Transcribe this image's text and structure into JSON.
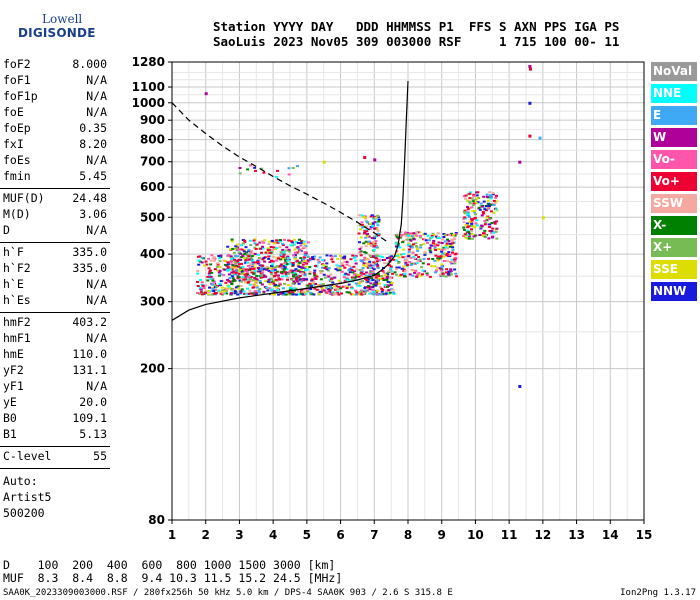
{
  "logo": {
    "line1": "Lowell",
    "line2": "DIGISONDE"
  },
  "header": {
    "line1": "Station YYYY DAY   DDD HHMMSS P1  FFS S AXN PPS IGA PS",
    "line2": "SaoLuis 2023 Nov05 309 003000 RSF     1 715 100 00- 11"
  },
  "params": [
    {
      "k": "foF2",
      "v": "8.000"
    },
    {
      "k": "foF1",
      "v": "N/A"
    },
    {
      "k": "foF1p",
      "v": "N/A"
    },
    {
      "k": "foE",
      "v": "N/A"
    },
    {
      "k": "foEp",
      "v": "0.35"
    },
    {
      "k": "fxI",
      "v": "8.20"
    },
    {
      "k": "foEs",
      "v": "N/A"
    },
    {
      "k": "fmin",
      "v": "5.45"
    },
    {
      "k": "MUF(D)",
      "v": "24.48"
    },
    {
      "k": "M(D)",
      "v": "3.06"
    },
    {
      "k": "D",
      "v": "N/A"
    },
    {
      "k": "h`F",
      "v": "335.0"
    },
    {
      "k": "h`F2",
      "v": "335.0"
    },
    {
      "k": "h`E",
      "v": "N/A"
    },
    {
      "k": "h`Es",
      "v": "N/A"
    },
    {
      "k": "hmF2",
      "v": "403.2"
    },
    {
      "k": "hmF1",
      "v": "N/A"
    },
    {
      "k": "hmE",
      "v": "110.0"
    },
    {
      "k": "yF2",
      "v": "131.1"
    },
    {
      "k": "yF1",
      "v": "N/A"
    },
    {
      "k": "yE",
      "v": "20.0"
    },
    {
      "k": "B0",
      "v": "109.1"
    },
    {
      "k": "B1",
      "v": "5.13"
    },
    {
      "k": "C-level",
      "v": "55"
    }
  ],
  "auto": [
    "Auto:",
    "Artist5",
    "500200"
  ],
  "legend": [
    {
      "label": "NoVal",
      "bg": "#999999",
      "fg": "#ffffff"
    },
    {
      "label": "NNE",
      "bg": "#00ffff",
      "fg": "#ffffff"
    },
    {
      "label": "E",
      "bg": "#3fa9f5",
      "fg": "#ffffff"
    },
    {
      "label": "W",
      "bg": "#b0009a",
      "fg": "#ffffff"
    },
    {
      "label": "Vo-",
      "bg": "#ff55aa",
      "fg": "#ffffff"
    },
    {
      "label": "Vo+",
      "bg": "#ee0033",
      "fg": "#ffffff"
    },
    {
      "label": "SSW",
      "bg": "#f4a8a0",
      "fg": "#ffffff"
    },
    {
      "label": "X-",
      "bg": "#008000",
      "fg": "#ffffff"
    },
    {
      "label": "X+",
      "bg": "#77bb55",
      "fg": "#ffffff"
    },
    {
      "label": "SSE",
      "bg": "#dddd00",
      "fg": "#ffffff"
    },
    {
      "label": "NNW",
      "bg": "#1a1adf",
      "fg": "#ffffff"
    }
  ],
  "bottom": {
    "line1": "D    100  200  400  600  800 1000 1500 3000 [km]",
    "line2": "MUF  8.3  8.4  8.8  9.4 10.3 11.5 15.2 24.5 [MHz]"
  },
  "footer": "SAA0K_2023309003000.RSF / 280fx256h 50 kHz 5.0 km / DPS-4 SAA0K 903 / 2.6 S 315.8 E",
  "version": "Ion2Png 1.3.17",
  "chart_data": {
    "type": "scatter",
    "x_ticks": [
      "1",
      "2",
      "3",
      "4",
      "5",
      "6",
      "7",
      "8",
      "9",
      "10",
      "11",
      "12",
      "13",
      "14",
      "15"
    ],
    "y_ticks": [
      "80",
      "200",
      "300",
      "400",
      "500",
      "600",
      "700",
      "800",
      "900",
      "1000",
      "1100",
      "1280"
    ],
    "xlim": [
      1,
      15
    ],
    "y_scale": "log",
    "ylim": [
      80,
      1280
    ],
    "grid": true,
    "curves": {
      "profile": {
        "x": [
          8.0,
          7.95,
          7.9,
          7.85,
          7.8,
          7.7,
          7.6,
          7.4,
          7.2,
          7.0,
          6.5,
          6.0,
          5.0,
          4.0,
          3.0,
          2.0,
          1.5,
          1.0
        ],
        "y": [
          1140,
          900,
          700,
          560,
          480,
          420,
          395,
          375,
          362,
          352,
          342,
          335,
          325,
          316,
          307,
          295,
          285,
          268
        ]
      },
      "maximum_trace": {
        "x": [
          7.8,
          7.85,
          7.9,
          7.95,
          8.0
        ],
        "y": [
          380,
          500,
          700,
          900,
          1140
        ]
      },
      "dashed": {
        "x": [
          1.0,
          1.5,
          2.0,
          2.5,
          3.0,
          3.5,
          4.0,
          4.5,
          5.0,
          5.5,
          6.0,
          6.5,
          7.0,
          7.4
        ],
        "y": [
          1000,
          900,
          830,
          770,
          720,
          680,
          640,
          605,
          575,
          545,
          515,
          485,
          455,
          430
        ]
      }
    },
    "echo_regions": [
      {
        "x0": 1.7,
        "x1": 7.6,
        "y0": 315,
        "y1": 400
      },
      {
        "x0": 2.6,
        "x1": 5.0,
        "y0": 340,
        "y1": 440
      },
      {
        "x0": 6.5,
        "x1": 7.1,
        "y0": 330,
        "y1": 510
      },
      {
        "x0": 7.6,
        "x1": 9.4,
        "y0": 350,
        "y1": 460
      },
      {
        "x0": 9.6,
        "x1": 10.6,
        "y0": 440,
        "y1": 590
      },
      {
        "x0": 2.8,
        "x1": 4.7,
        "y0": 640,
        "y1": 690
      }
    ],
    "points": [
      {
        "x": 2.0,
        "y": 1060,
        "c": "#b0009a"
      },
      {
        "x": 11.6,
        "y": 1250,
        "c": "#b0009a"
      },
      {
        "x": 11.62,
        "y": 1230,
        "c": "#ee0033"
      },
      {
        "x": 11.6,
        "y": 1000,
        "c": "#1a1adf"
      },
      {
        "x": 11.6,
        "y": 820,
        "c": "#ee0033"
      },
      {
        "x": 11.9,
        "y": 810,
        "c": "#3fa9f5"
      },
      {
        "x": 11.3,
        "y": 700,
        "c": "#b0009a"
      },
      {
        "x": 7.0,
        "y": 710,
        "c": "#b0009a"
      },
      {
        "x": 6.7,
        "y": 720,
        "c": "#ee0033"
      },
      {
        "x": 5.5,
        "y": 700,
        "c": "#dddd00"
      },
      {
        "x": 11.3,
        "y": 180,
        "c": "#1a1adf"
      },
      {
        "x": 12.0,
        "y": 500,
        "c": "#dddd00"
      }
    ]
  }
}
